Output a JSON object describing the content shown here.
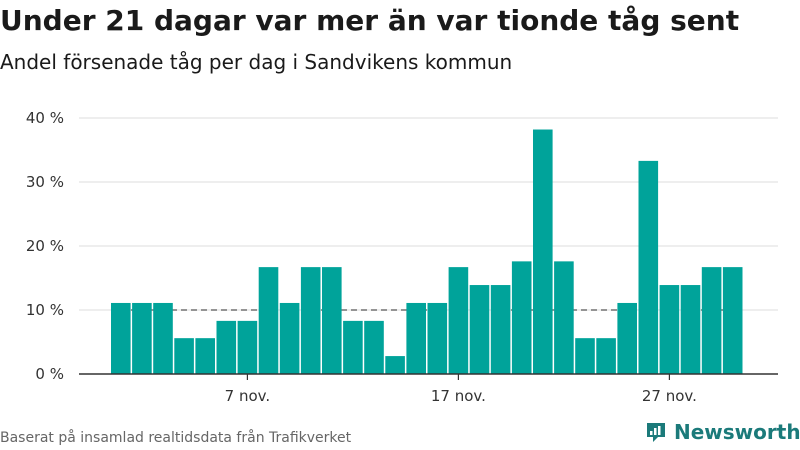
{
  "title": "Under 21 dagar var mer än var tionde tåg sent",
  "subtitle": "Andel försenade tåg per dag i Sandvikens kommun",
  "source": "Baserat på insamlad realtidsdata från Trafikverket",
  "brand": {
    "name": "Newsworthy",
    "color": "#1b7a7a"
  },
  "colors": {
    "bar": "#00a39a",
    "grid": "#dddddd",
    "reference": "#555555",
    "axis": "#333333"
  },
  "chart_data": {
    "type": "bar",
    "x_tick_labels": [
      "7 nov.",
      "17 nov.",
      "27 nov."
    ],
    "x_tick_positions": [
      7,
      17,
      27
    ],
    "x": [
      1,
      2,
      3,
      4,
      5,
      6,
      7,
      8,
      9,
      10,
      11,
      12,
      13,
      14,
      15,
      16,
      17,
      18,
      19,
      20,
      21,
      22,
      23,
      24,
      25,
      26,
      27,
      28,
      29,
      30
    ],
    "values": [
      11.1,
      11.1,
      11.1,
      5.6,
      5.6,
      8.3,
      8.3,
      16.7,
      11.1,
      16.7,
      16.7,
      8.3,
      8.3,
      2.8,
      11.1,
      11.1,
      16.7,
      13.9,
      13.9,
      17.6,
      38.2,
      17.6,
      5.6,
      5.6,
      11.1,
      33.3,
      13.9,
      13.9,
      16.7,
      16.7
    ],
    "y_ticks": [
      0,
      10,
      20,
      30,
      40
    ],
    "y_tick_labels": [
      "0 %",
      "10 %",
      "20 %",
      "30 %",
      "40 %"
    ],
    "ylim": [
      0,
      40
    ],
    "reference_line": 10,
    "xlabel": "",
    "ylabel": "",
    "grid": "horizontal"
  }
}
